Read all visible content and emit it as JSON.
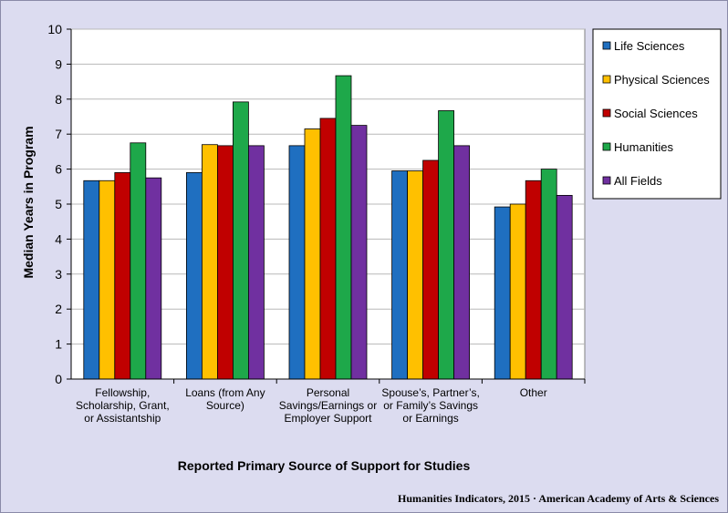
{
  "chart_data": {
    "type": "bar",
    "title": "",
    "xlabel": "Reported Primary Source of Support for Studies",
    "ylabel": "Median Years in Program",
    "ylim": [
      0,
      10
    ],
    "yticks": [
      0,
      1,
      2,
      3,
      4,
      5,
      6,
      7,
      8,
      9,
      10
    ],
    "grid": true,
    "legend_position": "right",
    "categories": [
      [
        "Fellowship,",
        "Scholarship, Grant,",
        "or Assistantship"
      ],
      [
        "Loans (from Any",
        "Source)"
      ],
      [
        "Personal",
        "Savings/Earnings or",
        "Employer Support"
      ],
      [
        "Spouse’s, Partner’s,",
        "or Family’s Savings",
        "or Earnings"
      ],
      [
        "Other"
      ]
    ],
    "series": [
      {
        "name": "Life Sciences",
        "color": "#1f6fc0",
        "values": [
          5.67,
          5.9,
          6.67,
          5.95,
          4.92
        ]
      },
      {
        "name": "Physical Sciences",
        "color": "#ffc000",
        "values": [
          5.67,
          6.7,
          7.15,
          5.95,
          5.0
        ]
      },
      {
        "name": "Social Sciences",
        "color": "#c00000",
        "values": [
          5.9,
          6.67,
          7.45,
          6.25,
          5.67
        ]
      },
      {
        "name": "Humanities",
        "color": "#1ea84a",
        "values": [
          6.75,
          7.92,
          8.67,
          7.67,
          6.0
        ]
      },
      {
        "name": "All Fields",
        "color": "#7030a0",
        "values": [
          5.75,
          6.67,
          7.25,
          6.67,
          5.25
        ]
      }
    ]
  },
  "credit": "Humanities Indicators, 2015 · American Academy of Arts & Sciences"
}
